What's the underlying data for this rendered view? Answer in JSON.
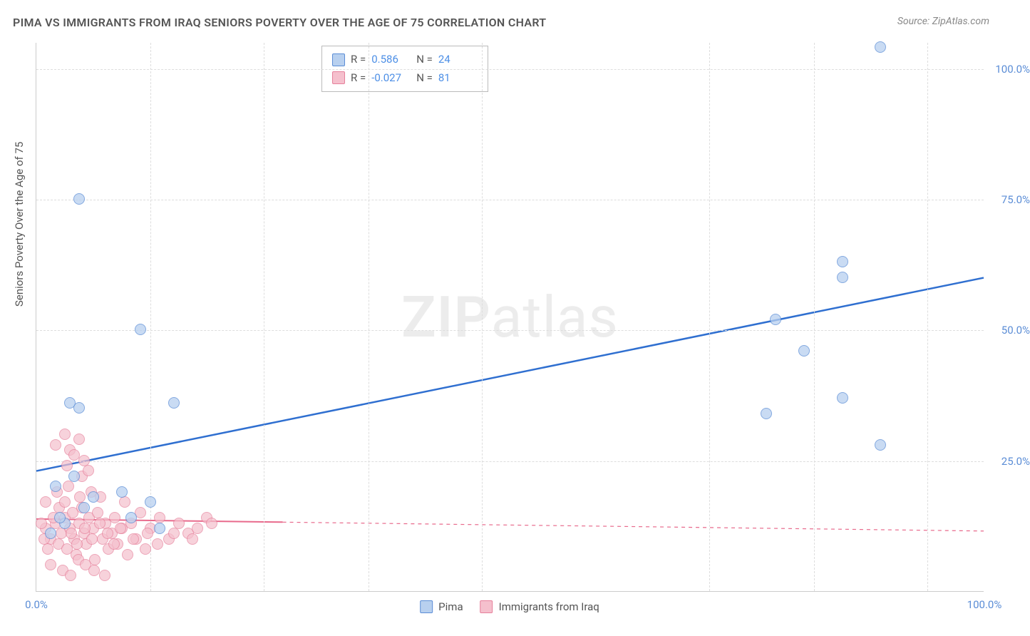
{
  "title": "PIMA VS IMMIGRANTS FROM IRAQ SENIORS POVERTY OVER THE AGE OF 75 CORRELATION CHART",
  "source": "Source: ZipAtlas.com",
  "ylabel": "Seniors Poverty Over the Age of 75",
  "watermark_a": "ZIP",
  "watermark_b": "atlas",
  "chart": {
    "type": "scatter",
    "xlim": [
      0,
      100
    ],
    "ylim": [
      0,
      105
    ],
    "x_ticks": [
      0,
      100
    ],
    "x_tick_labels": [
      "0.0%",
      "100.0%"
    ],
    "y_ticks": [
      25,
      50,
      75,
      100
    ],
    "y_tick_labels": [
      "25.0%",
      "50.0%",
      "75.0%",
      "100.0%"
    ],
    "x_gridlines": [
      12,
      24,
      35,
      47,
      71,
      82,
      94
    ],
    "background_color": "#ffffff",
    "grid_color": "#dddddd",
    "axis_color": "#cccccc",
    "tick_color": "#5b8dd6",
    "point_radius": 8,
    "series": [
      {
        "name": "Pima",
        "color_fill": "#b8d0ef",
        "color_stroke": "#5b8dd6",
        "opacity": 0.75,
        "R": "0.586",
        "N": "24",
        "trend": {
          "x1": 0,
          "y1": 23,
          "x2": 100,
          "y2": 60,
          "color": "#2f6fd0",
          "width": 2.5
        },
        "trend_solid_end_x": 100,
        "points": [
          [
            4.5,
            75
          ],
          [
            11,
            50
          ],
          [
            3.5,
            36
          ],
          [
            4.5,
            35
          ],
          [
            14.5,
            36
          ],
          [
            77,
            34
          ],
          [
            85,
            37
          ],
          [
            81,
            46
          ],
          [
            89,
            28
          ],
          [
            78,
            52
          ],
          [
            85,
            63
          ],
          [
            85,
            60
          ],
          [
            89,
            104
          ],
          [
            2,
            20
          ],
          [
            4,
            22
          ],
          [
            3,
            13
          ],
          [
            6,
            18
          ],
          [
            9,
            19
          ],
          [
            1.5,
            11
          ],
          [
            2.5,
            14
          ],
          [
            5,
            16
          ],
          [
            10,
            14
          ],
          [
            12,
            17
          ],
          [
            13,
            12
          ]
        ]
      },
      {
        "name": "Immigrants from Iraq",
        "color_fill": "#f5c0cd",
        "color_stroke": "#e6809b",
        "opacity": 0.7,
        "R": "-0.027",
        "N": "81",
        "trend": {
          "x1": 0,
          "y1": 13.8,
          "x2": 100,
          "y2": 11.5,
          "color": "#e86a8c",
          "width": 2
        },
        "trend_solid_end_x": 26,
        "points": [
          [
            1,
            12
          ],
          [
            1.5,
            10
          ],
          [
            2,
            13
          ],
          [
            2.3,
            9
          ],
          [
            2.6,
            11
          ],
          [
            3,
            14
          ],
          [
            3.2,
            8
          ],
          [
            3.5,
            12
          ],
          [
            3.8,
            15
          ],
          [
            4,
            10
          ],
          [
            4.2,
            7
          ],
          [
            4.5,
            13
          ],
          [
            4.8,
            16
          ],
          [
            5,
            11
          ],
          [
            5.3,
            9
          ],
          [
            5.6,
            14
          ],
          [
            6,
            12
          ],
          [
            6.2,
            6
          ],
          [
            6.5,
            15
          ],
          [
            6.8,
            18
          ],
          [
            7,
            10
          ],
          [
            7.3,
            13
          ],
          [
            7.6,
            8
          ],
          [
            8,
            11
          ],
          [
            8.3,
            14
          ],
          [
            8.6,
            9
          ],
          [
            9,
            12
          ],
          [
            9.3,
            17
          ],
          [
            9.6,
            7
          ],
          [
            10,
            13
          ],
          [
            10.5,
            10
          ],
          [
            11,
            15
          ],
          [
            11.5,
            8
          ],
          [
            12,
            12
          ],
          [
            13,
            14
          ],
          [
            14,
            10
          ],
          [
            15,
            13
          ],
          [
            16,
            11
          ],
          [
            17,
            12
          ],
          [
            18,
            14
          ],
          [
            2,
            28
          ],
          [
            3,
            30
          ],
          [
            3.5,
            27
          ],
          [
            4,
            26
          ],
          [
            4.5,
            29
          ],
          [
            5,
            25
          ],
          [
            3.2,
            24
          ],
          [
            4.8,
            22
          ],
          [
            5.5,
            23
          ],
          [
            1.5,
            5
          ],
          [
            2.8,
            4
          ],
          [
            3.6,
            3
          ],
          [
            4.4,
            6
          ],
          [
            5.2,
            5
          ],
          [
            6.1,
            4
          ],
          [
            7.2,
            3
          ],
          [
            1,
            17
          ],
          [
            2.2,
            19
          ],
          [
            3.4,
            20
          ],
          [
            4.6,
            18
          ],
          [
            5.8,
            19
          ],
          [
            0.5,
            13
          ],
          [
            0.8,
            10
          ],
          [
            1.2,
            8
          ],
          [
            1.8,
            14
          ],
          [
            2.4,
            16
          ],
          [
            3.0,
            17
          ],
          [
            3.7,
            11
          ],
          [
            4.3,
            9
          ],
          [
            5.1,
            12
          ],
          [
            5.9,
            10
          ],
          [
            6.7,
            13
          ],
          [
            7.5,
            11
          ],
          [
            8.2,
            9
          ],
          [
            8.9,
            12
          ],
          [
            10.2,
            10
          ],
          [
            11.7,
            11
          ],
          [
            12.8,
            9
          ],
          [
            14.5,
            11
          ],
          [
            16.5,
            10
          ],
          [
            18.5,
            13
          ]
        ]
      }
    ],
    "bottom_legend": [
      {
        "label": "Pima",
        "swatch": "blue"
      },
      {
        "label": "Immigrants from Iraq",
        "swatch": "pink"
      }
    ]
  }
}
